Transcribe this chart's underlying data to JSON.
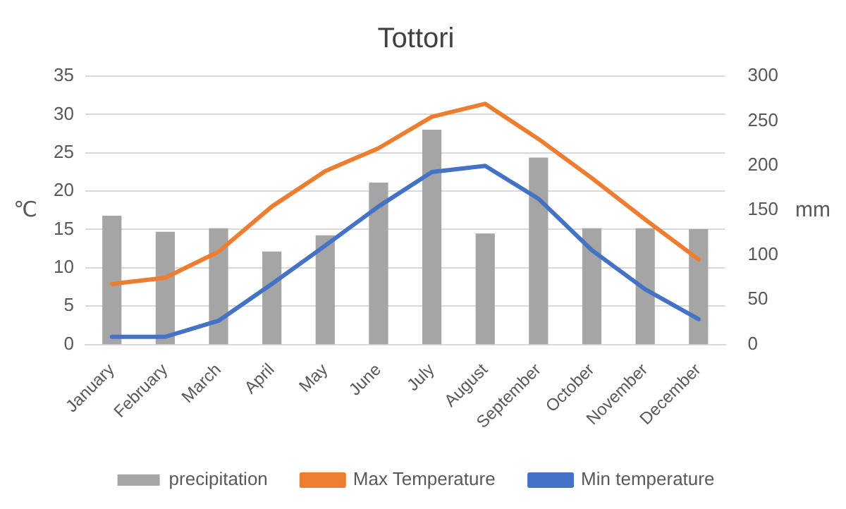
{
  "chart_data": {
    "type": "bar",
    "title": "Tottori",
    "ylabel": "℃",
    "y2label": "mm",
    "categories": [
      "January",
      "February",
      "March",
      "April",
      "May",
      "June",
      "July",
      "August",
      "September",
      "October",
      "November",
      "December"
    ],
    "series": [
      {
        "name": "precipitation",
        "axis": "y2",
        "color": "#a5a5a5",
        "values": [
          144,
          126,
          130,
          104,
          122,
          181,
          240,
          124,
          209,
          130,
          130,
          129
        ]
      },
      {
        "name": "Max Temperature",
        "type": "line",
        "color": "#ed7d31",
        "values": [
          7.9,
          8.7,
          12.1,
          18.0,
          22.6,
          25.6,
          29.7,
          31.4,
          26.8,
          21.7,
          16.3,
          11.1
        ]
      },
      {
        "name": "Min temperature",
        "type": "line",
        "color": "#4472c4",
        "values": [
          1.0,
          1.0,
          3.1,
          7.9,
          12.9,
          18.0,
          22.5,
          23.3,
          19.0,
          12.3,
          7.2,
          3.3
        ]
      }
    ],
    "ylim": [
      0,
      35
    ],
    "yticks": [
      0,
      5,
      10,
      15,
      20,
      25,
      30,
      35
    ],
    "y2lim": [
      0,
      300
    ],
    "y2ticks": [
      0,
      50,
      100,
      150,
      200,
      250,
      300
    ],
    "grid": "y",
    "legend": "bottom",
    "marker": "none"
  }
}
